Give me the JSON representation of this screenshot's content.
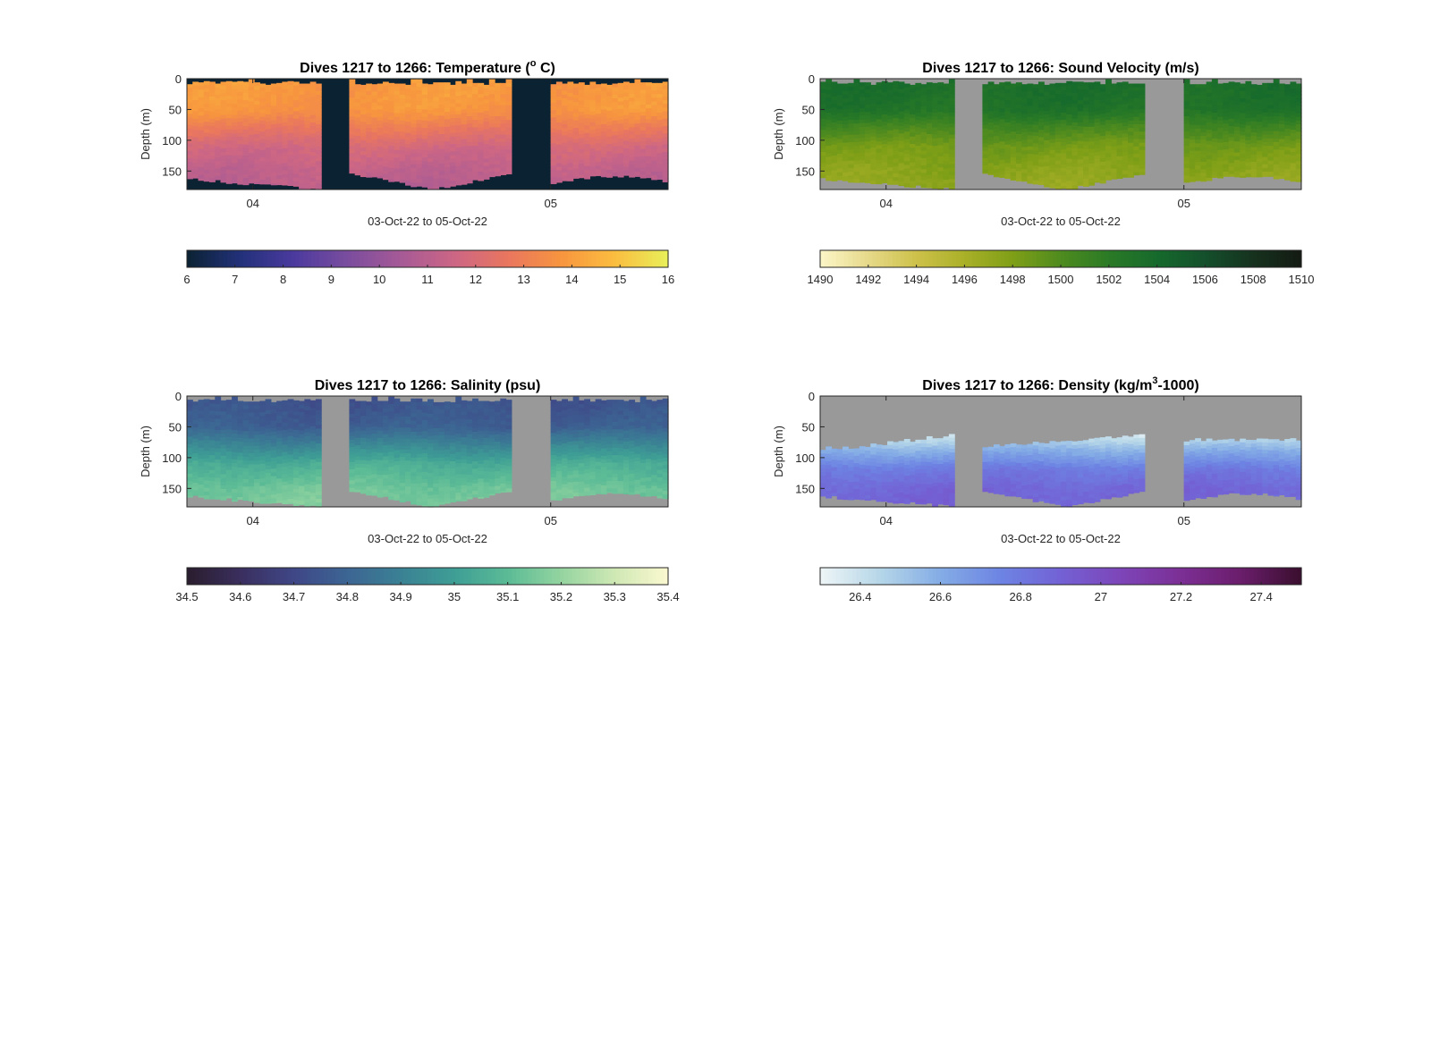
{
  "figure": {
    "background": "#ffffff",
    "no_data_fill": "#999999",
    "depth_ticks": [
      "0",
      "50",
      "100",
      "150"
    ],
    "date_ticks": [
      "04",
      "05"
    ]
  },
  "chart_data": [
    {
      "type": "heatmap",
      "id": "temperature",
      "title_prefix": "Dives 1217 to 1266: Temperature (",
      "title_sup": "o",
      "title_suffix": " C)",
      "xlabel": "03-Oct-22 to 05-Oct-22",
      "ylabel": "Depth (m)",
      "ylim": [
        0,
        180
      ],
      "y_reversed": true,
      "x_ticks": [
        "04",
        "05"
      ],
      "y_ticks": [
        0,
        50,
        100,
        150
      ],
      "background_color": "#0b2233",
      "colorbar": {
        "range": [
          6,
          16
        ],
        "ticks": [
          "6",
          "7",
          "8",
          "9",
          "10",
          "11",
          "12",
          "13",
          "14",
          "15",
          "16"
        ],
        "colors": [
          "#0b2233",
          "#22317a",
          "#4b3a9e",
          "#7a4d9e",
          "#a65a96",
          "#cc6685",
          "#e9765f",
          "#f7953f",
          "#fbbd3f",
          "#e8f05a"
        ]
      },
      "profile_by_depth": [
        {
          "depth": 10,
          "value": 13.9
        },
        {
          "depth": 50,
          "value": 13.8
        },
        {
          "depth": 80,
          "value": 12.8
        },
        {
          "depth": 110,
          "value": 11.8
        },
        {
          "depth": 150,
          "value": 11.2
        },
        {
          "depth": 180,
          "value": 11.0
        }
      ]
    },
    {
      "type": "heatmap",
      "id": "sound_velocity",
      "title_prefix": "Dives 1217 to 1266: Sound Velocity (m/s)",
      "title_sup": "",
      "title_suffix": "",
      "xlabel": "03-Oct-22 to 05-Oct-22",
      "ylabel": "Depth (m)",
      "ylim": [
        0,
        180
      ],
      "y_reversed": true,
      "x_ticks": [
        "04",
        "05"
      ],
      "y_ticks": [
        0,
        50,
        100,
        150
      ],
      "background_color": "#999999",
      "colorbar": {
        "range": [
          1490,
          1510
        ],
        "ticks": [
          "1490",
          "1492",
          "1494",
          "1496",
          "1498",
          "1500",
          "1502",
          "1504",
          "1506",
          "1508",
          "1510"
        ],
        "colors": [
          "#fcf6c8",
          "#e6d98a",
          "#cdc14a",
          "#a9b028",
          "#7f9f17",
          "#4f8b1f",
          "#2a7a26",
          "#166a2c",
          "#14502c",
          "#16321f",
          "#141a12"
        ]
      },
      "profile_by_depth": [
        {
          "depth": 10,
          "value": 1503.5
        },
        {
          "depth": 50,
          "value": 1503.0
        },
        {
          "depth": 80,
          "value": 1500.5
        },
        {
          "depth": 110,
          "value": 1498.5
        },
        {
          "depth": 150,
          "value": 1497.5
        },
        {
          "depth": 180,
          "value": 1497.0
        }
      ]
    },
    {
      "type": "heatmap",
      "id": "salinity",
      "title_prefix": "Dives 1217 to 1266: Salinity (psu)",
      "title_sup": "",
      "title_suffix": "",
      "xlabel": "03-Oct-22 to 05-Oct-22",
      "ylabel": "Depth (m)",
      "ylim": [
        0,
        180
      ],
      "y_reversed": true,
      "x_ticks": [
        "04",
        "05"
      ],
      "y_ticks": [
        0,
        50,
        100,
        150
      ],
      "background_color": "#999999",
      "colorbar": {
        "range": [
          34.5,
          35.4
        ],
        "ticks": [
          "34.5",
          "34.6",
          "34.7",
          "34.8",
          "34.9",
          "35",
          "35.1",
          "35.2",
          "35.3",
          "35.4"
        ],
        "colors": [
          "#2a1d2e",
          "#3a2f5e",
          "#3f4787",
          "#3c6593",
          "#3b8194",
          "#3e9e95",
          "#5bbb96",
          "#94d4a0",
          "#cfe8b4",
          "#fbf8d0"
        ]
      },
      "profile_by_depth": [
        {
          "depth": 10,
          "value": 34.74
        },
        {
          "depth": 50,
          "value": 34.78
        },
        {
          "depth": 80,
          "value": 34.92
        },
        {
          "depth": 110,
          "value": 35.05
        },
        {
          "depth": 150,
          "value": 35.14
        },
        {
          "depth": 180,
          "value": 35.16
        }
      ]
    },
    {
      "type": "heatmap",
      "id": "density",
      "title_prefix": "Dives 1217 to 1266: Density (kg/m",
      "title_sup": "3",
      "title_suffix": "-1000)",
      "xlabel": "03-Oct-22 to 05-Oct-22",
      "ylabel": "Depth (m)",
      "ylim": [
        0,
        180
      ],
      "y_reversed": true,
      "x_ticks": [
        "04",
        "05"
      ],
      "y_ticks": [
        0,
        50,
        100,
        150
      ],
      "background_color": "#999999",
      "colorbar": {
        "range": [
          26.3,
          27.5
        ],
        "ticks": [
          "26.4",
          "26.6",
          "26.8",
          "27",
          "27.2",
          "27.4"
        ],
        "tick_values": [
          26.4,
          26.6,
          26.8,
          27.0,
          27.2,
          27.4
        ],
        "colors": [
          "#eef5f6",
          "#b5d6e8",
          "#84ace5",
          "#6d84e3",
          "#7361d4",
          "#7d45b8",
          "#7c2f95",
          "#6a1d6b",
          "#3a0f2e"
        ]
      },
      "profile_by_depth": [
        {
          "depth": 60,
          "value": 26.35
        },
        {
          "depth": 90,
          "value": 26.6
        },
        {
          "depth": 120,
          "value": 26.8
        },
        {
          "depth": 150,
          "value": 26.88
        },
        {
          "depth": 180,
          "value": 26.9
        }
      ]
    }
  ]
}
